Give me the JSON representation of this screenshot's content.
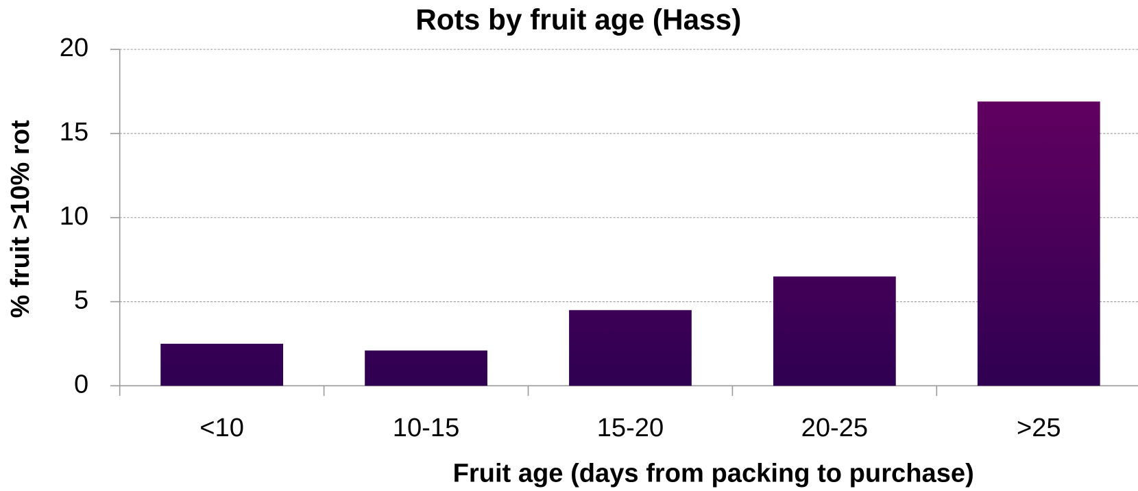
{
  "chart_data": {
    "type": "bar",
    "title": "Rots by fruit age (Hass)",
    "x_label": "Fruit age (days from packing to purchase)",
    "y_label": "% fruit >10% rot",
    "categories": [
      "<10",
      "10-15",
      "15-20",
      "20-25",
      ">25"
    ],
    "values": [
      2.5,
      2.1,
      4.5,
      6.5,
      16.9
    ],
    "gradient": [
      "#6a0062",
      "#2f0052"
    ],
    "ylim": [
      0,
      20
    ],
    "yticks": [
      0,
      5,
      10,
      15,
      20
    ],
    "grid": true
  }
}
